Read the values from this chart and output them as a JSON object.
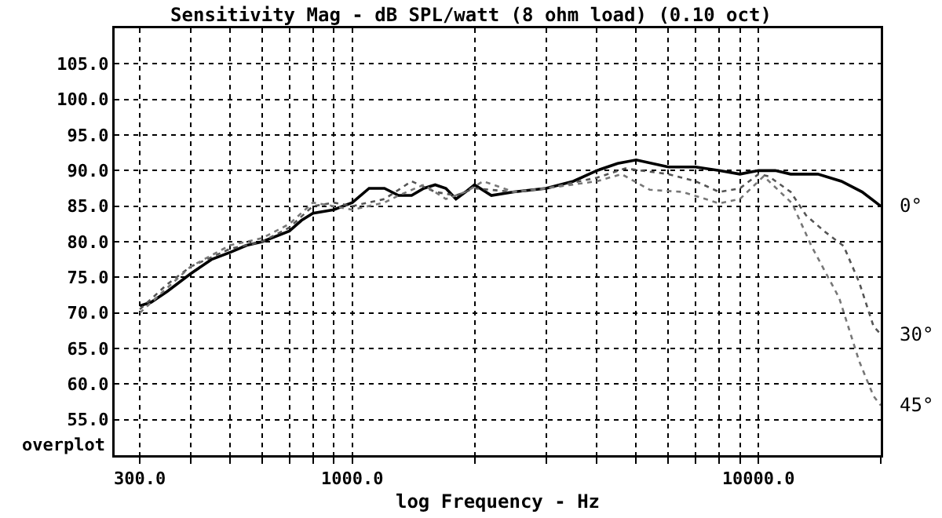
{
  "chart_data": {
    "type": "line",
    "title": "Sensitivity Mag - dB SPL/watt (8 ohm load) (0.10 oct)",
    "xlabel": "log Frequency - Hz",
    "annotations": [
      "overplot"
    ],
    "log": "x",
    "grid": true,
    "legend": false,
    "marker": "none",
    "xlim": [
      260,
      20000
    ],
    "ylim": [
      50,
      110
    ],
    "xticks": [
      {
        "value": 300,
        "label": "300.0"
      },
      {
        "value": 400,
        "label": null
      },
      {
        "value": 500,
        "label": null
      },
      {
        "value": 600,
        "label": null
      },
      {
        "value": 700,
        "label": null
      },
      {
        "value": 800,
        "label": null
      },
      {
        "value": 900,
        "label": null
      },
      {
        "value": 1000,
        "label": "1000.0"
      },
      {
        "value": 2000,
        "label": null
      },
      {
        "value": 3000,
        "label": null
      },
      {
        "value": 4000,
        "label": null
      },
      {
        "value": 5000,
        "label": null
      },
      {
        "value": 6000,
        "label": null
      },
      {
        "value": 7000,
        "label": null
      },
      {
        "value": 8000,
        "label": null
      },
      {
        "value": 9000,
        "label": null
      },
      {
        "value": 10000,
        "label": "10000.0"
      },
      {
        "value": 20000,
        "label": null
      }
    ],
    "yticks": [
      {
        "value": 55,
        "label": "55.0"
      },
      {
        "value": 60,
        "label": "60.0"
      },
      {
        "value": 65,
        "label": "65.0"
      },
      {
        "value": 70,
        "label": "70.0"
      },
      {
        "value": 75,
        "label": "75.0"
      },
      {
        "value": 80,
        "label": "80.0"
      },
      {
        "value": 85,
        "label": "85.0"
      },
      {
        "value": 90,
        "label": "90.0"
      },
      {
        "value": 95,
        "label": "95.0"
      },
      {
        "value": 100,
        "label": "100.0"
      },
      {
        "value": 105,
        "label": "105.0"
      }
    ],
    "series": [
      {
        "name": "0°",
        "color": "#000000",
        "line_style": "solid",
        "x": [
          300,
          320,
          350,
          400,
          450,
          500,
          550,
          600,
          700,
          750,
          800,
          900,
          1000,
          1100,
          1200,
          1300,
          1400,
          1500,
          1600,
          1700,
          1800,
          1900,
          2000,
          2200,
          2500,
          3000,
          3500,
          4000,
          4500,
          5000,
          6000,
          7000,
          8000,
          9000,
          10000,
          11000,
          12000,
          14000,
          16000,
          18000,
          20000
        ],
        "values": [
          71,
          71.5,
          73,
          75.5,
          77.5,
          78.5,
          79.5,
          80,
          81.5,
          83,
          84,
          84.5,
          85.5,
          87.5,
          87.5,
          86.5,
          86.5,
          87.5,
          88,
          87.5,
          86,
          87,
          88,
          86.5,
          87,
          87.5,
          88.5,
          90,
          91,
          91.5,
          90.5,
          90.5,
          90,
          89.5,
          90,
          90,
          89.5,
          89.5,
          88.5,
          87,
          85
        ]
      },
      {
        "name": "30°",
        "color": "#555555",
        "line_style": "dotted",
        "x": [
          300,
          350,
          400,
          500,
          600,
          700,
          800,
          900,
          1000,
          1200,
          1400,
          1600,
          1800,
          2000,
          2500,
          3000,
          4000,
          4700,
          6000,
          7000,
          8000,
          9000,
          10000,
          10600,
          12000,
          13100,
          14500,
          16200,
          17700,
          19200,
          20000
        ],
        "values": [
          70.5,
          74,
          76.5,
          79,
          80,
          82,
          85,
          85.5,
          85,
          86,
          88.5,
          87,
          86.5,
          87.5,
          87,
          87.5,
          89,
          90.3,
          89.5,
          88.5,
          87,
          87.5,
          89.5,
          89.2,
          87,
          83.7,
          81.5,
          79.4,
          74.3,
          68.1,
          67
        ]
      },
      {
        "name": "45°",
        "color": "#777777",
        "line_style": "dotted",
        "x": [
          300,
          350,
          400,
          500,
          600,
          700,
          800,
          900,
          1000,
          1200,
          1300,
          1500,
          1700,
          1900,
          2100,
          2500,
          3000,
          4000,
          4600,
          5400,
          6500,
          8000,
          9000,
          10300,
          12100,
          13500,
          15800,
          17700,
          19200,
          20000
        ],
        "values": [
          70,
          73.5,
          76.5,
          79.5,
          80.5,
          82.5,
          85.5,
          85,
          84.5,
          85.5,
          86.5,
          88,
          86,
          87,
          88.5,
          87,
          87.5,
          88.5,
          89.5,
          87.3,
          87,
          85.4,
          86,
          89.2,
          85.4,
          79.4,
          72.1,
          63.2,
          58.3,
          57
        ]
      }
    ]
  }
}
